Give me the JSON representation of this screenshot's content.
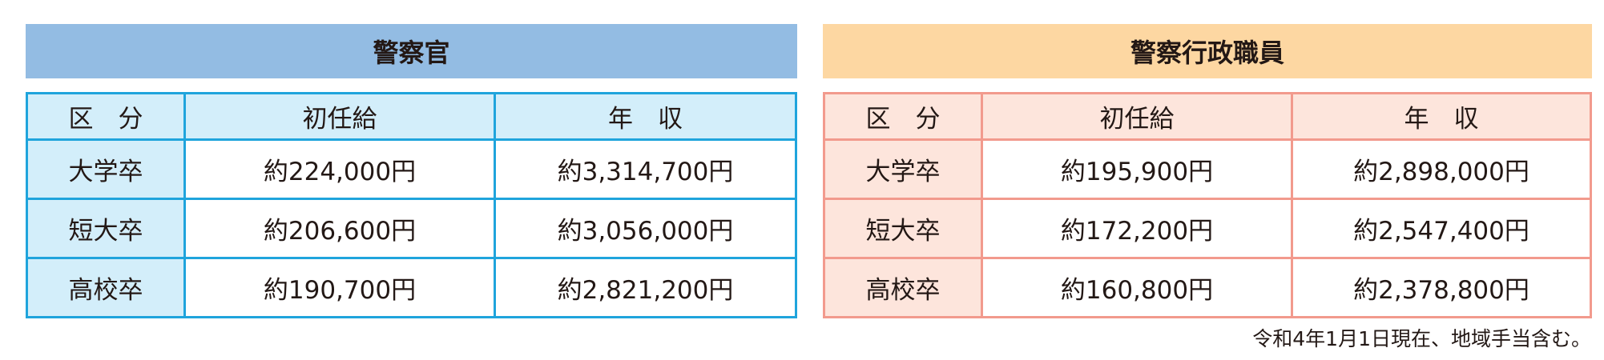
{
  "colors": {
    "police_title_bg": "#93bce3",
    "police_border": "#1fa4dc",
    "police_shade": "#d3eefa",
    "admin_title_bg": "#fdd7a2",
    "admin_border": "#f29a8d",
    "admin_shade": "#fde5dc"
  },
  "tables": [
    {
      "title": "警察官",
      "headers": [
        "区　分",
        "初任給",
        "年　収"
      ],
      "rows": [
        [
          "大学卒",
          "約224,000円",
          "約3,314,700円"
        ],
        [
          "短大卒",
          "約206,600円",
          "約3,056,000円"
        ],
        [
          "高校卒",
          "約190,700円",
          "約2,821,200円"
        ]
      ]
    },
    {
      "title": "警察行政職員",
      "headers": [
        "区　分",
        "初任給",
        "年　収"
      ],
      "rows": [
        [
          "大学卒",
          "約195,900円",
          "約2,898,000円"
        ],
        [
          "短大卒",
          "約172,200円",
          "約2,547,400円"
        ],
        [
          "高校卒",
          "約160,800円",
          "約2,378,800円"
        ]
      ]
    }
  ],
  "footnote": "令和4年1月1日現在、地域手当含む。"
}
